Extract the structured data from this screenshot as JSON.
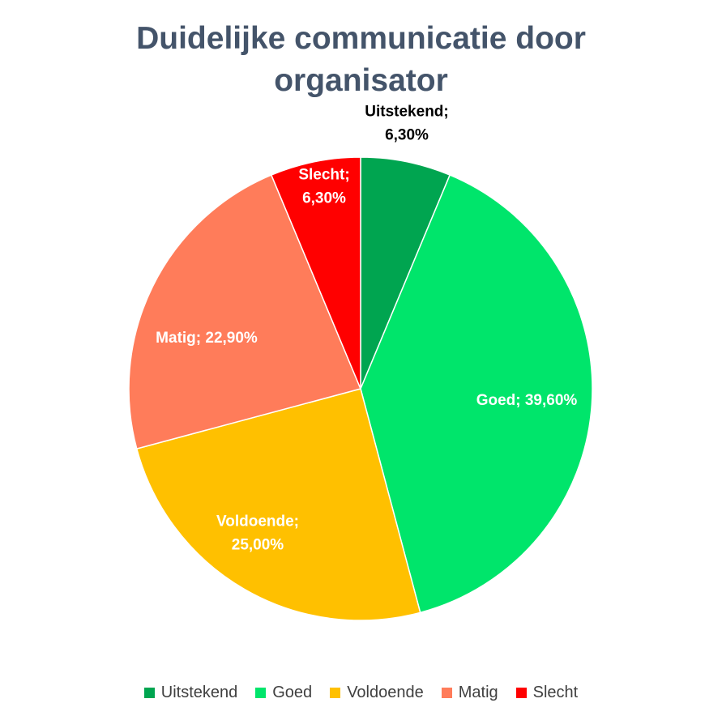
{
  "chart_data": {
    "type": "pie",
    "title": "Duidelijke communicatie door organisator",
    "title_lines": [
      "Duidelijke communicatie door",
      "organisator"
    ],
    "legend_position": "bottom",
    "slices": [
      {
        "name": "Uitstekend",
        "value": 6.3,
        "label_lines": [
          "Uitstekend;",
          "6,30%"
        ],
        "color": "#00a550",
        "label_color": "#000000"
      },
      {
        "name": "Goed",
        "value": 39.6,
        "label_lines": [
          "Goed; 39,60%"
        ],
        "color": "#00e56b",
        "label_color": "#ffffff"
      },
      {
        "name": "Voldoende",
        "value": 25.0,
        "label_lines": [
          "Voldoende;",
          "25,00%"
        ],
        "color": "#ffc000",
        "label_color": "#ffffff"
      },
      {
        "name": "Matig",
        "value": 22.9,
        "label_lines": [
          "Matig; 22,90%"
        ],
        "color": "#ff7c5a",
        "label_color": "#ffffff"
      },
      {
        "name": "Slecht",
        "value": 6.3,
        "label_lines": [
          "Slecht;",
          "6,30%"
        ],
        "color": "#ff0000",
        "label_color": "#ffffff"
      }
    ]
  }
}
